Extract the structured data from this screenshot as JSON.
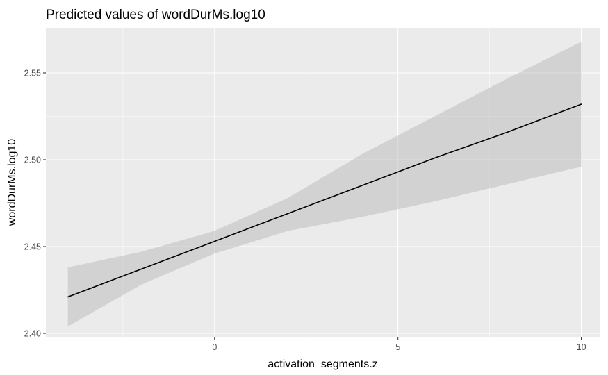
{
  "chart_data": {
    "type": "line",
    "title": "Predicted values of wordDurMs.log10",
    "xlabel": "activation_segments.z",
    "ylabel": "wordDurMs.log10",
    "xlim": [
      -4.6,
      10.5
    ],
    "ylim": [
      2.398,
      2.576
    ],
    "x_ticks": [
      0,
      5,
      10
    ],
    "x_tick_labels": [
      "0",
      "5",
      "10"
    ],
    "x_minor": [
      -2.5,
      2.5,
      7.5
    ],
    "y_ticks": [
      2.4,
      2.45,
      2.5,
      2.55
    ],
    "y_tick_labels": [
      "2.40",
      "2.45",
      "2.50",
      "2.55"
    ],
    "y_minor": [
      2.425,
      2.475,
      2.525
    ],
    "grid": true,
    "legend": "none",
    "colors": {
      "panel": "#EBEBEB",
      "line": "#000000",
      "band": "#B3B3B3"
    },
    "series": [
      {
        "x": [
          -4,
          -2,
          0,
          2,
          4,
          6,
          8,
          10
        ],
        "values": [
          2.421,
          2.437,
          2.453,
          2.469,
          2.485,
          2.501,
          2.516,
          2.532
        ],
        "ci_low": [
          2.404,
          2.428,
          2.446,
          2.459,
          2.467,
          2.476,
          2.486,
          2.496
        ],
        "ci_high": [
          2.438,
          2.447,
          2.459,
          2.478,
          2.503,
          2.525,
          2.547,
          2.568
        ]
      }
    ]
  }
}
